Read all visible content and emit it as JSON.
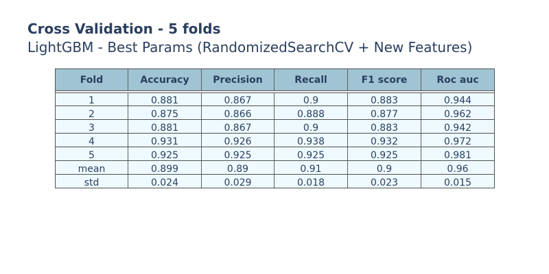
{
  "chart_data": {
    "type": "table",
    "title": "Cross Validation - 5 folds",
    "subtitle": "LightGBM - Best Params (RandomizedSearchCV + New Features)",
    "columns": [
      "Fold",
      "Accuracy",
      "Precision",
      "Recall",
      "F1 score",
      "Roc auc"
    ],
    "rows": [
      [
        "1",
        "0.881",
        "0.867",
        "0.9",
        "0.883",
        "0.944"
      ],
      [
        "2",
        "0.875",
        "0.866",
        "0.888",
        "0.877",
        "0.962"
      ],
      [
        "3",
        "0.881",
        "0.867",
        "0.9",
        "0.883",
        "0.942"
      ],
      [
        "4",
        "0.931",
        "0.926",
        "0.938",
        "0.932",
        "0.972"
      ],
      [
        "5",
        "0.925",
        "0.925",
        "0.925",
        "0.925",
        "0.981"
      ],
      [
        "mean",
        "0.899",
        "0.89",
        "0.91",
        "0.9",
        "0.96"
      ],
      [
        "std",
        "0.024",
        "0.029",
        "0.018",
        "0.023",
        "0.015"
      ]
    ]
  },
  "colors": {
    "header_fill": "#a0c4d4",
    "cell_fill": "#eefaff",
    "text": "#2a3f5f",
    "border": "#505050"
  }
}
